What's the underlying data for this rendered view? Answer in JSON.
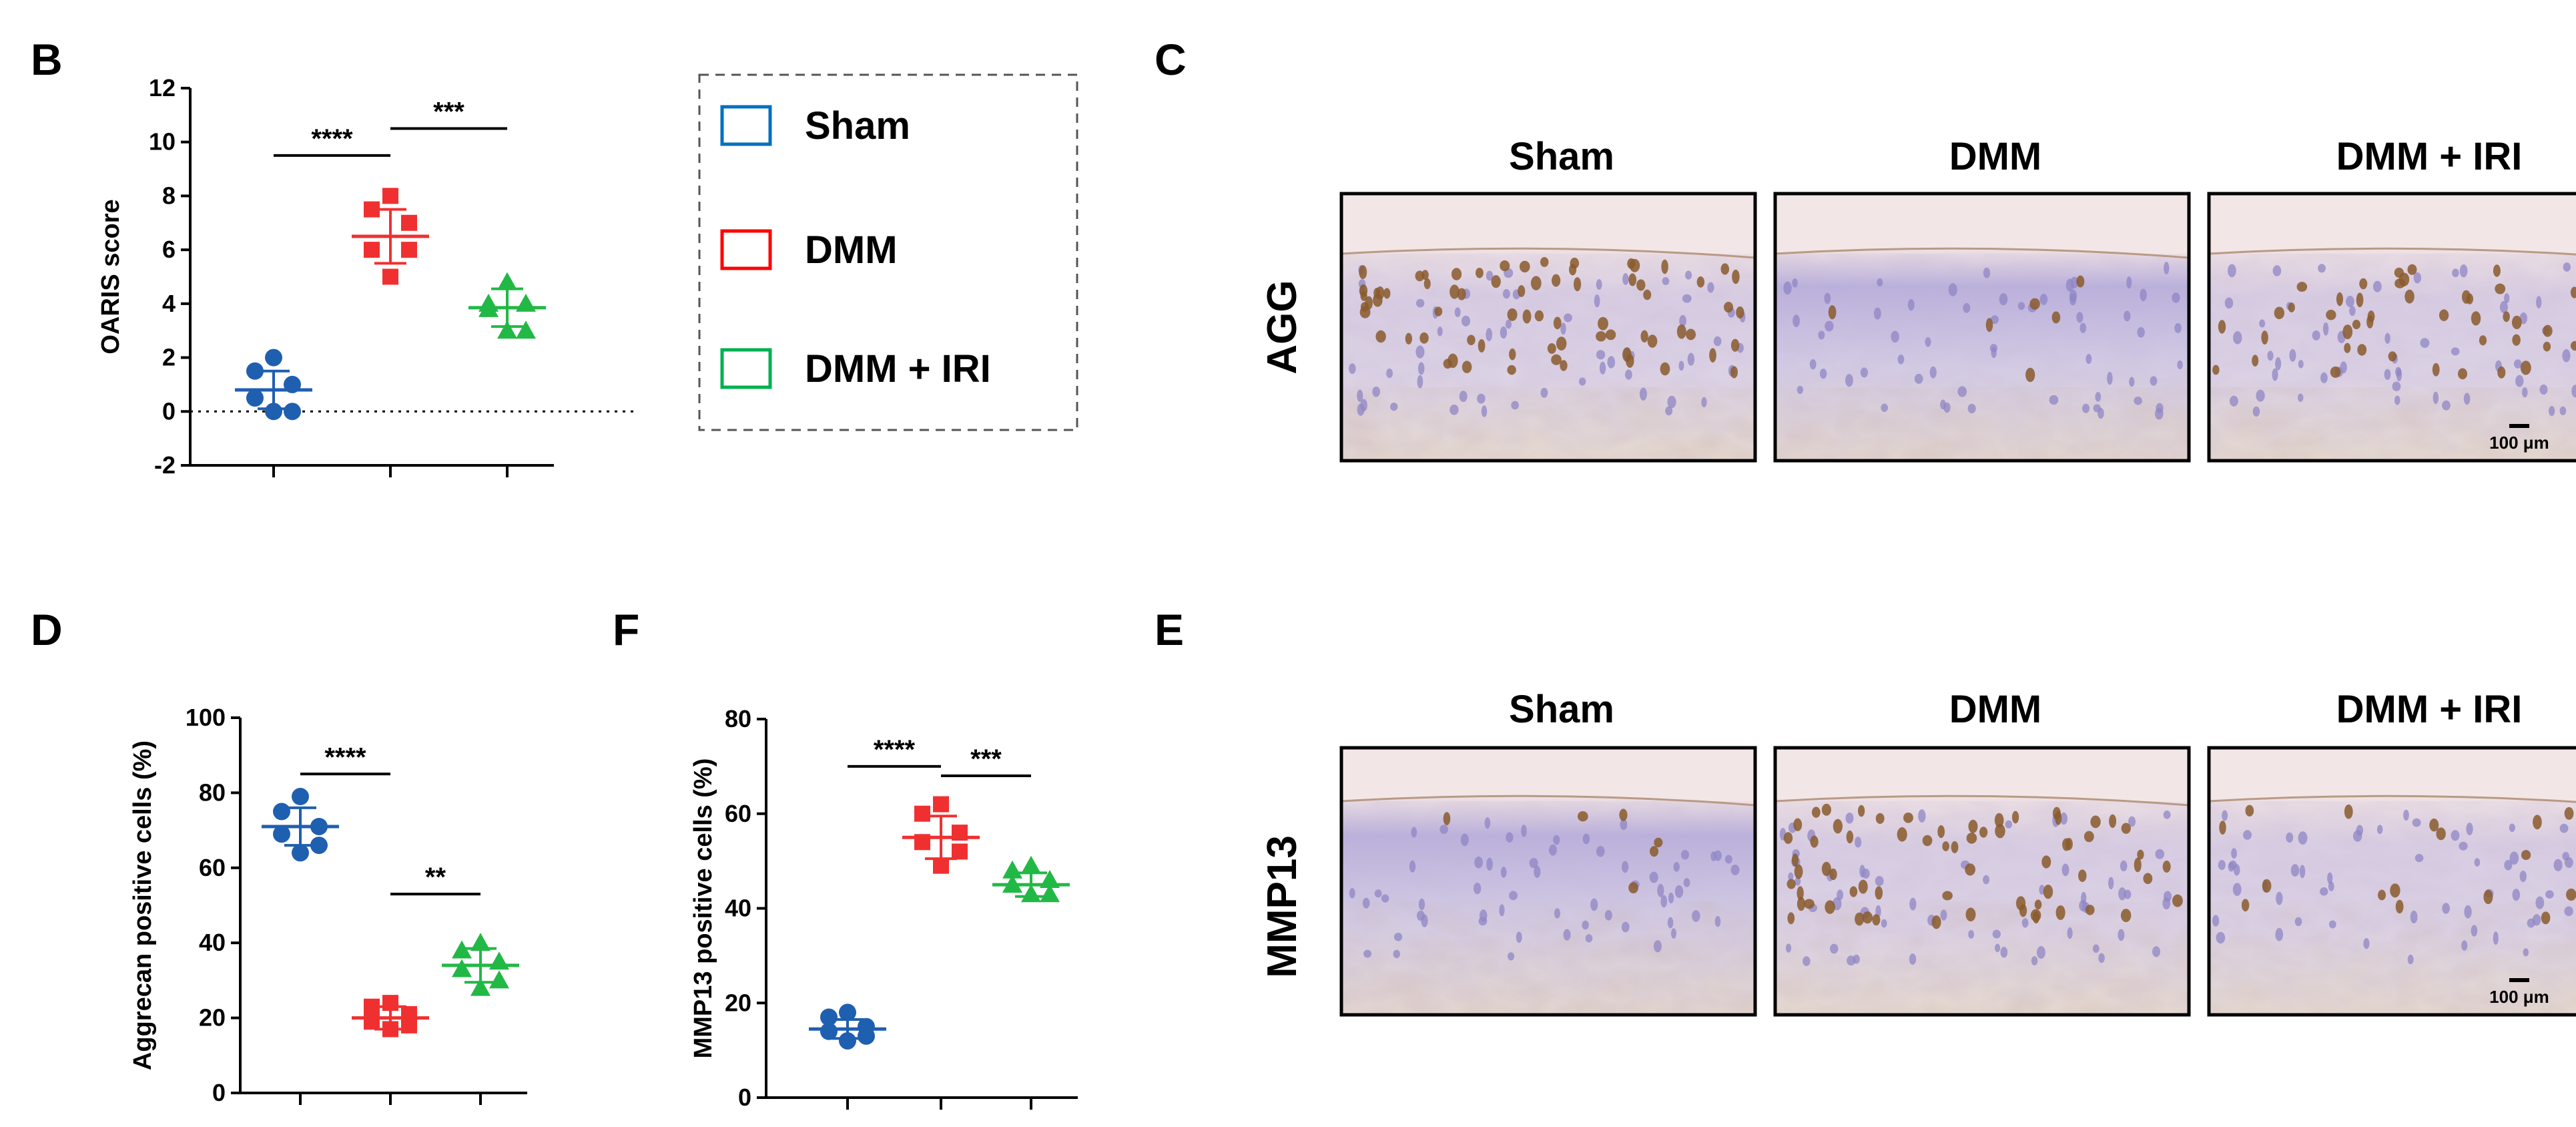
{
  "panels": {
    "B": "B",
    "C": "C",
    "D": "D",
    "E": "E",
    "F": "F"
  },
  "legend": {
    "items": [
      {
        "label": "Sham",
        "color": "#0070C0"
      },
      {
        "label": "DMM",
        "color": "#FF0000"
      },
      {
        "label": "DMM + IRI",
        "color": "#00B050"
      }
    ]
  },
  "micrographs": {
    "columns": [
      "Sham",
      "DMM",
      "DMM + IRI"
    ],
    "rows": [
      {
        "label": "AGG",
        "scale_bar": "100 μm"
      },
      {
        "label": "MMP13",
        "scale_bar": "100 μm"
      }
    ]
  },
  "chart_data": [
    {
      "id": "B",
      "type": "scatter",
      "ylabel": "OARIS score",
      "ylim": [
        -2,
        12
      ],
      "yticks": [
        -2,
        0,
        2,
        4,
        6,
        8,
        10,
        12
      ],
      "zero_line": true,
      "groups": [
        {
          "name": "Sham",
          "color": "#1F5FB0",
          "marker": "circle",
          "mean": 0.8,
          "sd": 0.7,
          "values": [
            2.0,
            1.5,
            1.0,
            0.5,
            0.0,
            0.0
          ]
        },
        {
          "name": "DMM",
          "color": "#F03030",
          "marker": "square",
          "mean": 6.5,
          "sd": 1.0,
          "values": [
            8.0,
            7.5,
            7.0,
            6.0,
            6.0,
            5.0
          ]
        },
        {
          "name": "DMM + IRI",
          "color": "#22B845",
          "marker": "triangle",
          "mean": 3.85,
          "sd": 0.7,
          "values": [
            4.8,
            4.0,
            4.0,
            3.8,
            3.0,
            3.0
          ]
        }
      ],
      "comparisons": [
        {
          "from": 0,
          "to": 1,
          "label": "****",
          "y": 9.5
        },
        {
          "from": 1,
          "to": 2,
          "label": "***",
          "y": 10.5
        }
      ]
    },
    {
      "id": "D",
      "type": "scatter",
      "ylabel": "Aggrecan positive cells (%)",
      "ylim": [
        0,
        100
      ],
      "yticks": [
        0,
        20,
        40,
        60,
        80,
        100
      ],
      "zero_line": false,
      "groups": [
        {
          "name": "Sham",
          "color": "#1F5FB0",
          "marker": "circle",
          "mean": 71,
          "sd": 5,
          "values": [
            79,
            75,
            71,
            69,
            66,
            64
          ]
        },
        {
          "name": "DMM",
          "color": "#F03030",
          "marker": "square",
          "mean": 20,
          "sd": 3,
          "values": [
            24,
            23,
            21,
            19,
            18,
            17
          ]
        },
        {
          "name": "DMM + IRI",
          "color": "#22B845",
          "marker": "triangle",
          "mean": 34,
          "sd": 4.5,
          "values": [
            40,
            38,
            35,
            33,
            30,
            28
          ]
        }
      ],
      "comparisons": [
        {
          "from": 0,
          "to": 1,
          "label": "****",
          "y": 85
        },
        {
          "from": 1,
          "to": 2,
          "label": "**",
          "y": 53
        }
      ]
    },
    {
      "id": "F",
      "type": "scatter",
      "ylabel": "MMP13 positive cells (%)",
      "ylim": [
        0,
        80
      ],
      "yticks": [
        0,
        20,
        40,
        60,
        80
      ],
      "zero_line": false,
      "groups": [
        {
          "name": "Sham",
          "color": "#1F5FB0",
          "marker": "circle",
          "mean": 14.5,
          "sd": 2,
          "values": [
            18,
            17,
            15,
            14,
            13,
            12
          ]
        },
        {
          "name": "DMM",
          "color": "#F03030",
          "marker": "square",
          "mean": 55,
          "sd": 4.5,
          "values": [
            62,
            60,
            56,
            54,
            52,
            49
          ]
        },
        {
          "name": "DMM + IRI",
          "color": "#22B845",
          "marker": "triangle",
          "mean": 45,
          "sd": 2.5,
          "values": [
            49,
            48,
            46,
            45,
            43,
            43
          ]
        }
      ],
      "comparisons": [
        {
          "from": 0,
          "to": 1,
          "label": "****",
          "y": 70
        },
        {
          "from": 1,
          "to": 2,
          "label": "***",
          "y": 68
        }
      ]
    }
  ]
}
